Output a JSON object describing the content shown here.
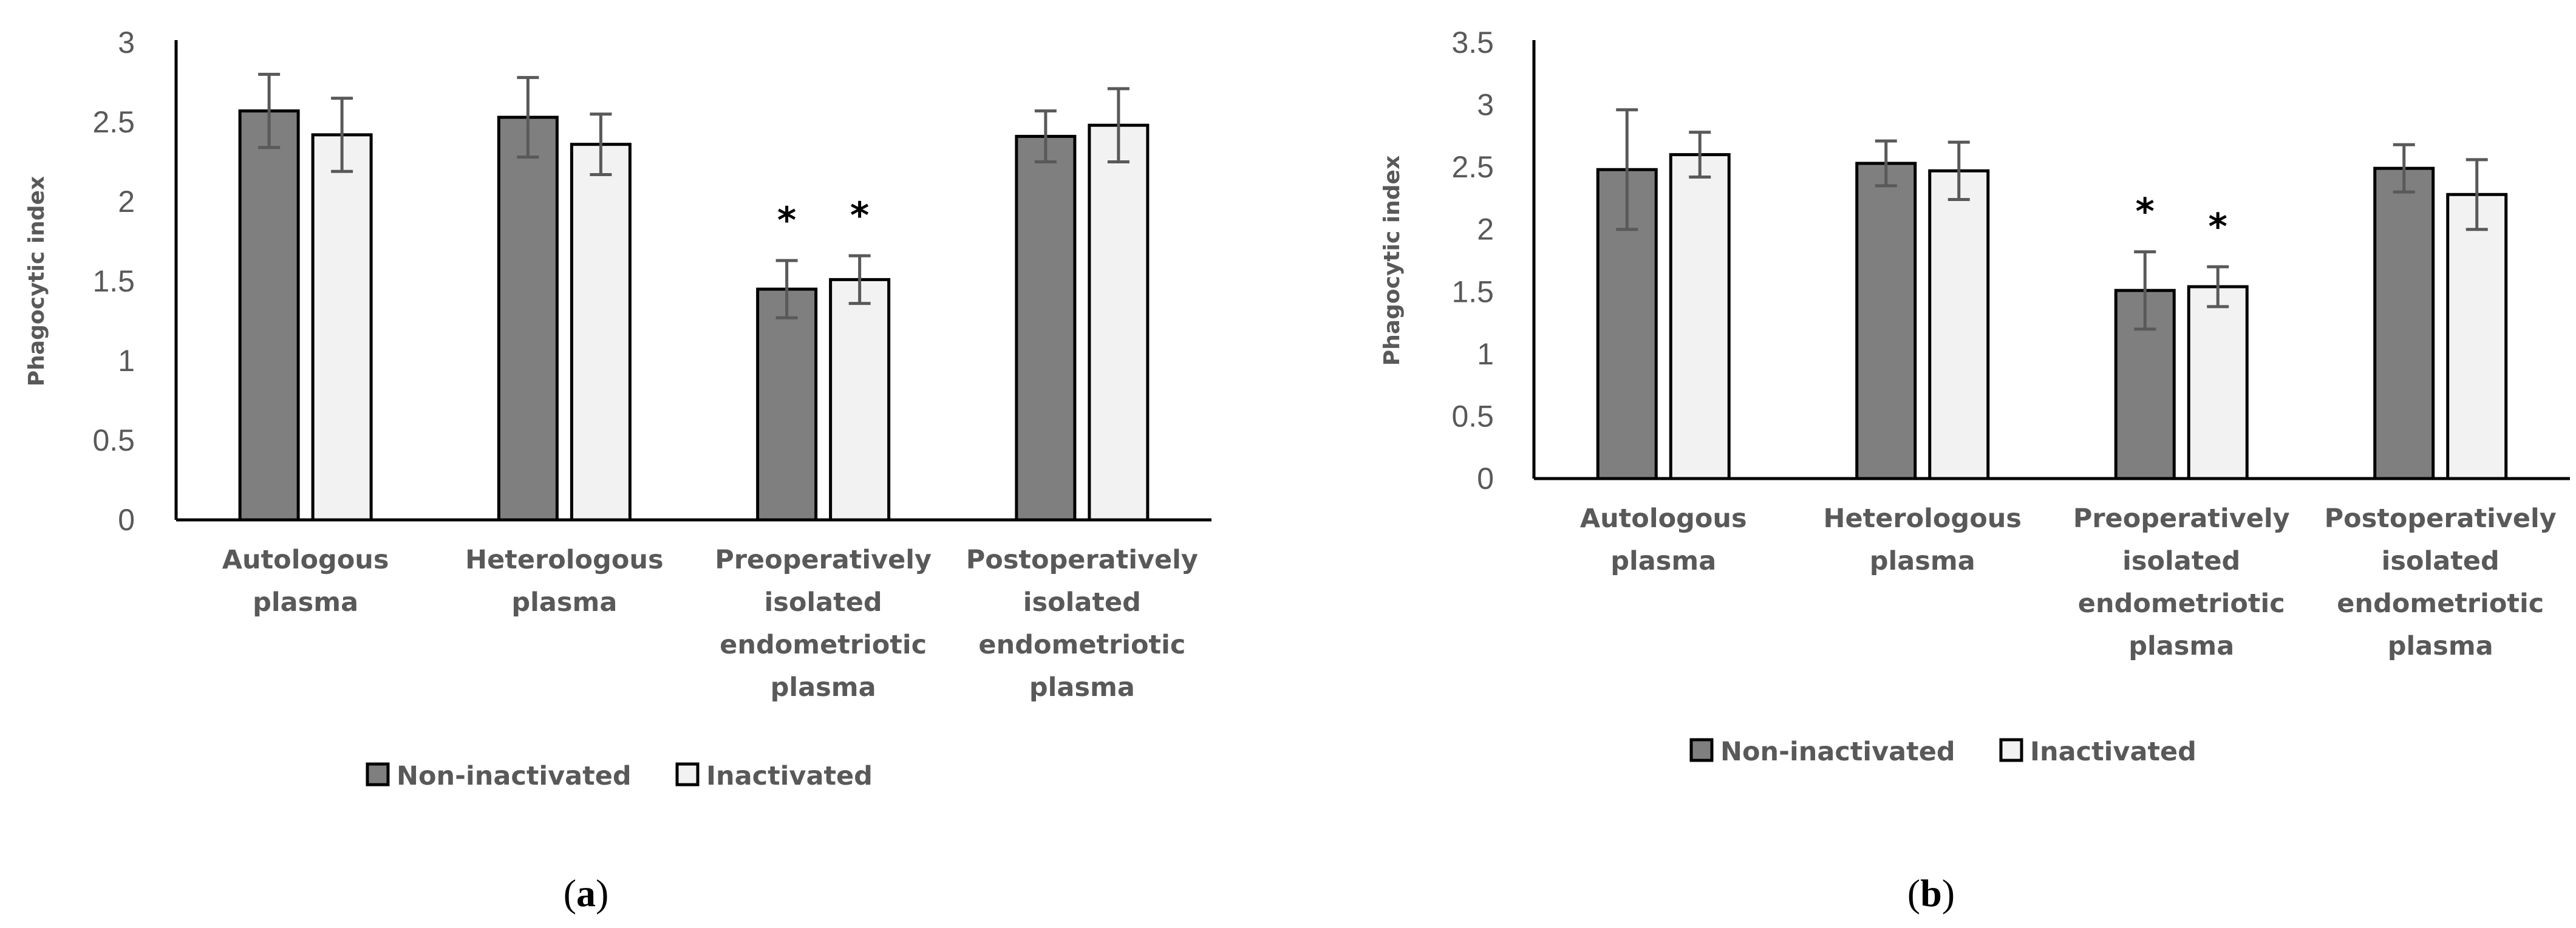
{
  "colors": {
    "non_inactivated": "#7f7f7f",
    "inactivated": "#f2f2f2",
    "bar_outline": "#000000",
    "error_bar": "#595959",
    "axis": "#000000",
    "text": "#595959"
  },
  "chart_data": [
    {
      "type": "bar",
      "panel_label": "a",
      "title": "",
      "xlabel": "",
      "ylabel": "Phagocytic index",
      "ylim": [
        0,
        3
      ],
      "yticks": [
        "0",
        "0.5",
        "1",
        "1.5",
        "2",
        "2.5",
        "3"
      ],
      "grid": false,
      "legend_position": "bottom",
      "categories": [
        [
          "Autologous",
          "plasma"
        ],
        [
          "Heterologous",
          "plasma"
        ],
        [
          "Preoperatively",
          "isolated",
          "endometriotic",
          "plasma"
        ],
        [
          "Postoperatively",
          "isolated",
          "endometriotic",
          "plasma"
        ]
      ],
      "series": [
        {
          "name": "Non-inactivated",
          "values": [
            2.57,
            2.53,
            1.45,
            2.41
          ],
          "errors": [
            0.23,
            0.25,
            0.18,
            0.16
          ],
          "significance": [
            "",
            "",
            "*",
            ""
          ]
        },
        {
          "name": "Inactivated",
          "values": [
            2.42,
            2.36,
            1.51,
            2.48
          ],
          "errors": [
            0.23,
            0.19,
            0.15,
            0.23
          ],
          "significance": [
            "",
            "",
            "*",
            ""
          ]
        }
      ]
    },
    {
      "type": "bar",
      "panel_label": "b",
      "title": "",
      "xlabel": "",
      "ylabel": "Phagocytic index",
      "ylim": [
        0,
        3.5
      ],
      "yticks": [
        "0",
        "0.5",
        "1",
        "1.5",
        "2",
        "2.5",
        "3",
        "3.5"
      ],
      "grid": false,
      "legend_position": "bottom",
      "categories": [
        [
          "Autologous",
          "plasma"
        ],
        [
          "Heterologous",
          "plasma"
        ],
        [
          "Preoperatively",
          "isolated",
          "endometriotic",
          "plasma"
        ],
        [
          "Postoperatively",
          "isolated",
          "endometriotic",
          "plasma"
        ]
      ],
      "series": [
        {
          "name": "Non-inactivated",
          "values": [
            2.48,
            2.53,
            1.51,
            2.49
          ],
          "errors": [
            0.48,
            0.18,
            0.31,
            0.19
          ],
          "significance": [
            "",
            "",
            "*",
            ""
          ]
        },
        {
          "name": "Inactivated",
          "values": [
            2.6,
            2.47,
            1.54,
            2.28
          ],
          "errors": [
            0.18,
            0.23,
            0.16,
            0.28
          ],
          "significance": [
            "",
            "",
            "*",
            ""
          ]
        }
      ]
    }
  ]
}
